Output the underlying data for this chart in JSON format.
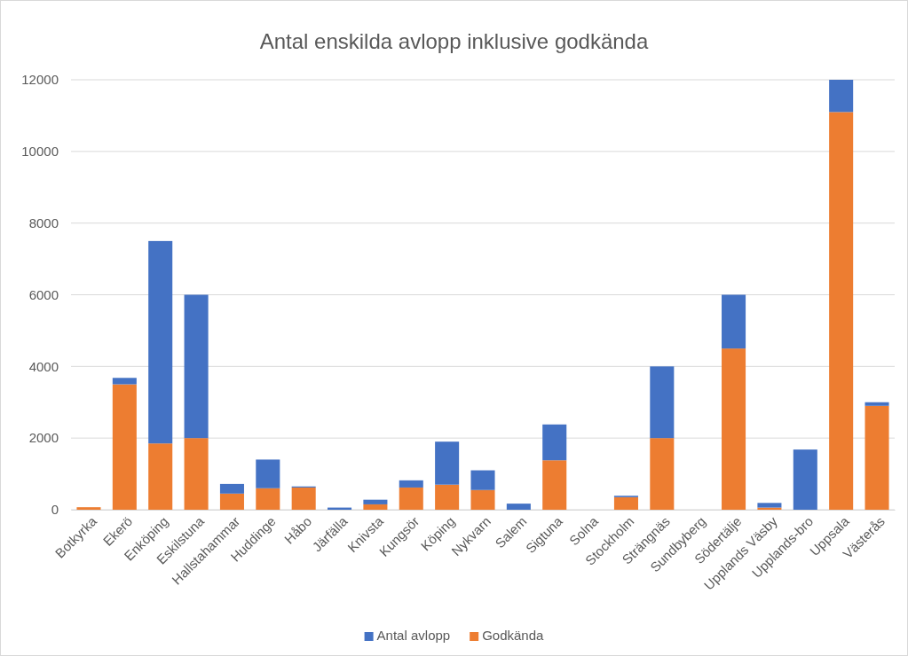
{
  "chart_data": {
    "type": "bar",
    "title": "Antal enskilda avlopp inklusive godkända",
    "categories": [
      "Botkyrka",
      "Ekerö",
      "Enköping",
      "Eskilstuna",
      "Hallstahammar",
      "Huddinge",
      "Håbo",
      "Järfälla",
      "Knivsta",
      "Kungsör",
      "Köping",
      "Nykvarn",
      "Salem",
      "Sigtuna",
      "Solna",
      "Stockholm",
      "Strängnäs",
      "Sundbyberg",
      "Södertälje",
      "Upplands Väsby",
      "Upplands-bro",
      "Uppsala",
      "Västerås"
    ],
    "series": [
      {
        "name": "Godkända",
        "color": "#ed7d31",
        "values": [
          70,
          3500,
          1850,
          2000,
          450,
          600,
          620,
          0,
          150,
          620,
          700,
          550,
          0,
          1380,
          0,
          350,
          2000,
          0,
          4500,
          60,
          0,
          11100,
          2900
        ]
      },
      {
        "name": "Antal avlopp",
        "color": "#4472c4",
        "values": [
          0,
          180,
          5650,
          4000,
          270,
          800,
          30,
          60,
          130,
          200,
          1200,
          550,
          170,
          1000,
          0,
          40,
          2000,
          0,
          1500,
          130,
          1680,
          900,
          100
        ]
      }
    ],
    "stacked": true,
    "ylim": [
      0,
      12000
    ],
    "yticks": [
      0,
      2000,
      4000,
      6000,
      8000,
      10000,
      12000
    ],
    "grid": "y",
    "legend": "bottom"
  }
}
